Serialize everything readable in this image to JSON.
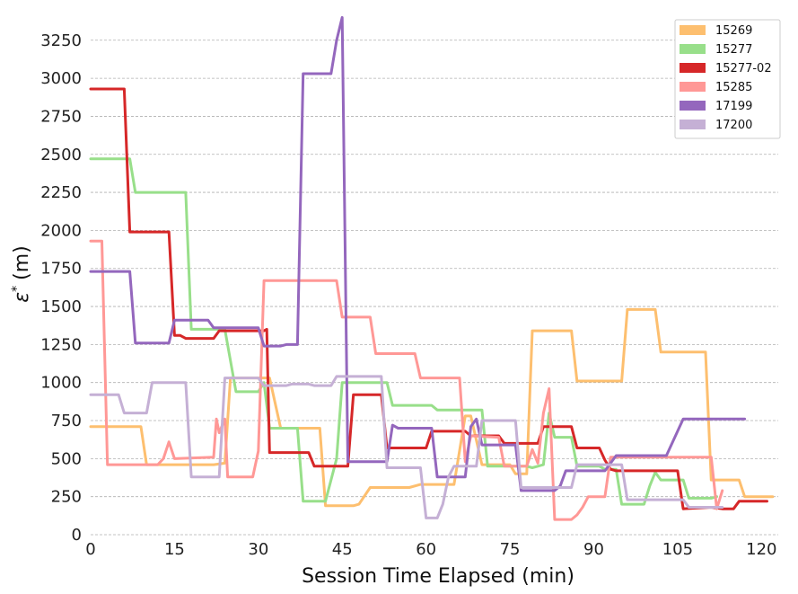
{
  "chart_data": {
    "type": "line",
    "title": "",
    "xlabel": "Session Time Elapsed (min)",
    "ylabel_prefix": "ε",
    "ylabel_sup": "*",
    "ylabel_suffix": "(m)",
    "xlim": [
      0,
      123
    ],
    "ylim": [
      0,
      3420
    ],
    "xticks": [
      0,
      15,
      30,
      45,
      60,
      75,
      90,
      105,
      120
    ],
    "yticks": [
      0,
      250,
      500,
      750,
      1000,
      1250,
      1500,
      1750,
      2000,
      2250,
      2500,
      2750,
      3000,
      3250
    ],
    "grid": "horizontal-dashed",
    "legend_position": "top-right",
    "series": [
      {
        "name": "15269",
        "color": "#fdbf6f",
        "points": [
          [
            0,
            710
          ],
          [
            9,
            710
          ],
          [
            10,
            460
          ],
          [
            22,
            460
          ],
          [
            24,
            470
          ],
          [
            25,
            1030
          ],
          [
            32,
            1030
          ],
          [
            34,
            700
          ],
          [
            41,
            700
          ],
          [
            42,
            190
          ],
          [
            47,
            190
          ],
          [
            48,
            200
          ],
          [
            50,
            310
          ],
          [
            57,
            310
          ],
          [
            59,
            330
          ],
          [
            65,
            330
          ],
          [
            67,
            780
          ],
          [
            68,
            780
          ],
          [
            70,
            460
          ],
          [
            75,
            460
          ],
          [
            76,
            400
          ],
          [
            78,
            400
          ],
          [
            79,
            1340
          ],
          [
            86,
            1340
          ],
          [
            87,
            1010
          ],
          [
            95,
            1010
          ],
          [
            96,
            1480
          ],
          [
            101,
            1480
          ],
          [
            102,
            1200
          ],
          [
            110,
            1200
          ],
          [
            111,
            360
          ],
          [
            116,
            360
          ],
          [
            117,
            250
          ],
          [
            122,
            250
          ]
        ]
      },
      {
        "name": "15277",
        "color": "#98df8a",
        "points": [
          [
            0,
            2470
          ],
          [
            7,
            2470
          ],
          [
            8,
            2250
          ],
          [
            17,
            2250
          ],
          [
            18,
            1350
          ],
          [
            23,
            1350
          ],
          [
            24,
            1350
          ],
          [
            26,
            940
          ],
          [
            30,
            940
          ],
          [
            31,
            1000
          ],
          [
            32,
            700
          ],
          [
            37,
            700
          ],
          [
            38,
            220
          ],
          [
            42,
            220
          ],
          [
            44,
            500
          ],
          [
            45,
            1000
          ],
          [
            53,
            1000
          ],
          [
            54,
            850
          ],
          [
            61,
            850
          ],
          [
            62,
            820
          ],
          [
            70,
            820
          ],
          [
            71,
            450
          ],
          [
            78,
            450
          ],
          [
            79,
            440
          ],
          [
            80,
            450
          ],
          [
            81,
            460
          ],
          [
            82,
            800
          ],
          [
            83,
            640
          ],
          [
            86,
            640
          ],
          [
            87,
            450
          ],
          [
            91,
            450
          ],
          [
            92,
            430
          ],
          [
            94,
            430
          ],
          [
            95,
            200
          ],
          [
            99,
            200
          ],
          [
            100,
            320
          ],
          [
            101,
            410
          ],
          [
            102,
            360
          ],
          [
            106,
            360
          ],
          [
            107,
            240
          ],
          [
            111,
            240
          ],
          [
            112,
            250
          ]
        ]
      },
      {
        "name": "15277-02",
        "color": "#d62728",
        "points": [
          [
            0,
            2930
          ],
          [
            6,
            2930
          ],
          [
            7,
            1990
          ],
          [
            14,
            1990
          ],
          [
            15,
            1310
          ],
          [
            16,
            1310
          ],
          [
            17,
            1290
          ],
          [
            22,
            1290
          ],
          [
            23,
            1340
          ],
          [
            31,
            1340
          ],
          [
            31.5,
            1350
          ],
          [
            32,
            540
          ],
          [
            39,
            540
          ],
          [
            40,
            450
          ],
          [
            46,
            450
          ],
          [
            47,
            920
          ],
          [
            52,
            920
          ],
          [
            53,
            570
          ],
          [
            60,
            570
          ],
          [
            61,
            680
          ],
          [
            67,
            680
          ],
          [
            68,
            650
          ],
          [
            73,
            650
          ],
          [
            74,
            600
          ],
          [
            80,
            600
          ],
          [
            81,
            710
          ],
          [
            86,
            710
          ],
          [
            87,
            570
          ],
          [
            91,
            570
          ],
          [
            92,
            490
          ],
          [
            93,
            430
          ],
          [
            94,
            420
          ],
          [
            105,
            420
          ],
          [
            106,
            170
          ],
          [
            111,
            180
          ],
          [
            113,
            170
          ],
          [
            115,
            170
          ],
          [
            116,
            220
          ],
          [
            121,
            220
          ]
        ]
      },
      {
        "name": "15285",
        "color": "#ff9896",
        "points": [
          [
            0,
            1930
          ],
          [
            2,
            1930
          ],
          [
            3,
            460
          ],
          [
            12,
            460
          ],
          [
            13,
            500
          ],
          [
            14,
            610
          ],
          [
            15,
            500
          ],
          [
            22,
            510
          ],
          [
            22.5,
            760
          ],
          [
            23,
            670
          ],
          [
            24,
            760
          ],
          [
            24.5,
            380
          ],
          [
            29,
            380
          ],
          [
            30,
            550
          ],
          [
            31,
            1670
          ],
          [
            44,
            1670
          ],
          [
            45,
            1430
          ],
          [
            50,
            1430
          ],
          [
            51,
            1190
          ],
          [
            58,
            1190
          ],
          [
            59,
            1030
          ],
          [
            66,
            1030
          ],
          [
            67,
            480
          ],
          [
            68,
            650
          ],
          [
            73,
            640
          ],
          [
            74,
            450
          ],
          [
            78,
            450
          ],
          [
            79,
            560
          ],
          [
            80,
            470
          ],
          [
            81,
            800
          ],
          [
            82,
            960
          ],
          [
            83,
            100
          ],
          [
            86,
            100
          ],
          [
            87,
            130
          ],
          [
            88,
            180
          ],
          [
            89,
            250
          ],
          [
            92,
            250
          ],
          [
            93,
            510
          ],
          [
            111,
            510
          ],
          [
            112,
            170
          ],
          [
            113,
            290
          ]
        ]
      },
      {
        "name": "17199",
        "color": "#9467bd",
        "points": [
          [
            0,
            1730
          ],
          [
            7,
            1730
          ],
          [
            8,
            1260
          ],
          [
            14,
            1260
          ],
          [
            15,
            1410
          ],
          [
            21,
            1410
          ],
          [
            22,
            1360
          ],
          [
            30,
            1360
          ],
          [
            31,
            1240
          ],
          [
            34,
            1240
          ],
          [
            35,
            1250
          ],
          [
            37,
            1250
          ],
          [
            38,
            3030
          ],
          [
            43,
            3030
          ],
          [
            44,
            3250
          ],
          [
            45,
            3400
          ],
          [
            46,
            480
          ],
          [
            53,
            480
          ],
          [
            54,
            720
          ],
          [
            55,
            700
          ],
          [
            61,
            700
          ],
          [
            62,
            380
          ],
          [
            67,
            380
          ],
          [
            68,
            710
          ],
          [
            69,
            760
          ],
          [
            70,
            590
          ],
          [
            76,
            590
          ],
          [
            77,
            290
          ],
          [
            83,
            290
          ],
          [
            84,
            320
          ],
          [
            85,
            420
          ],
          [
            92,
            420
          ],
          [
            94,
            520
          ],
          [
            103,
            520
          ],
          [
            106,
            760
          ],
          [
            117,
            760
          ]
        ]
      },
      {
        "name": "17200",
        "color": "#c5b0d5",
        "points": [
          [
            0,
            920
          ],
          [
            5,
            920
          ],
          [
            6,
            800
          ],
          [
            10,
            800
          ],
          [
            11,
            1000
          ],
          [
            17,
            1000
          ],
          [
            18,
            380
          ],
          [
            23,
            380
          ],
          [
            24,
            1030
          ],
          [
            30,
            1030
          ],
          [
            31,
            980
          ],
          [
            35,
            980
          ],
          [
            36,
            990
          ],
          [
            39,
            990
          ],
          [
            40,
            980
          ],
          [
            43,
            980
          ],
          [
            44,
            1040
          ],
          [
            52,
            1040
          ],
          [
            53,
            440
          ],
          [
            59,
            440
          ],
          [
            60,
            110
          ],
          [
            62,
            110
          ],
          [
            63,
            200
          ],
          [
            64,
            380
          ],
          [
            65,
            450
          ],
          [
            69,
            450
          ],
          [
            70,
            750
          ],
          [
            76,
            750
          ],
          [
            77,
            310
          ],
          [
            86,
            310
          ],
          [
            87,
            460
          ],
          [
            95,
            460
          ],
          [
            96,
            230
          ],
          [
            106,
            230
          ],
          [
            107,
            180
          ],
          [
            113,
            180
          ]
        ]
      }
    ]
  }
}
